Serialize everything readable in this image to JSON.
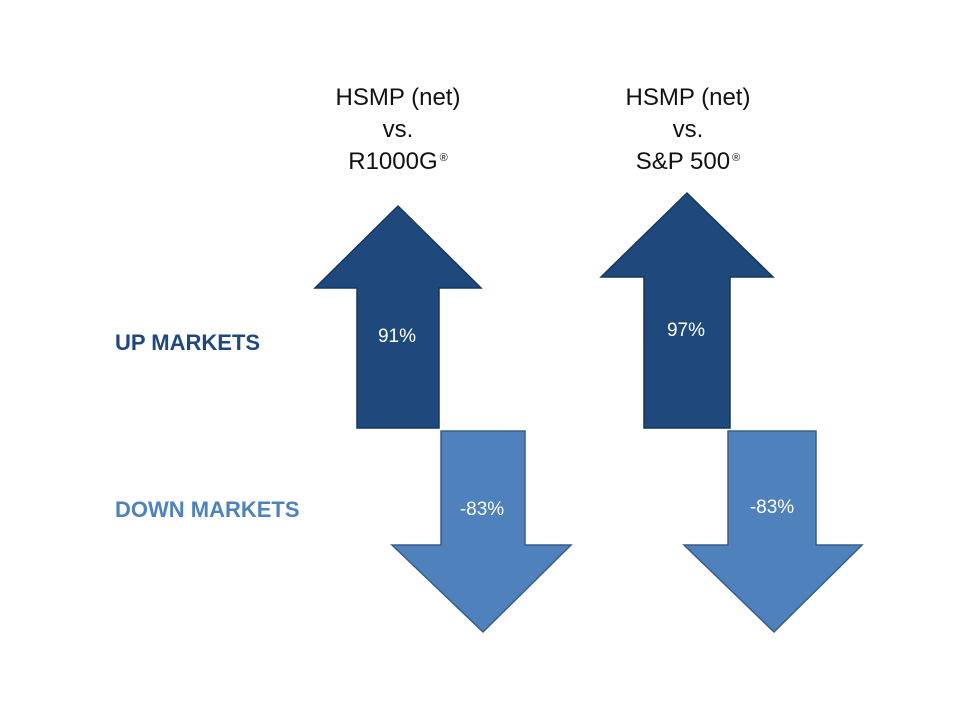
{
  "columns": [
    {
      "line1": "HSMP (net)",
      "line2": "vs.",
      "line3": "R1000G",
      "mark": "®",
      "up_value": "91%",
      "down_value": "-83%"
    },
    {
      "line1": "HSMP (net)",
      "line2": "vs.",
      "line3": "S&P 500",
      "mark": "®",
      "up_value": "97%",
      "down_value": "-83%"
    }
  ],
  "rows": {
    "up_label": "UP MARKETS",
    "down_label": "DOWN MARKETS"
  },
  "colors": {
    "up_arrow_fill": "#1F497D",
    "up_arrow_stroke": "#17375E",
    "down_arrow_fill": "#4F81BD",
    "down_arrow_stroke": "#385D8A",
    "up_label": "#1F497D",
    "down_label": "#4F81BD"
  }
}
